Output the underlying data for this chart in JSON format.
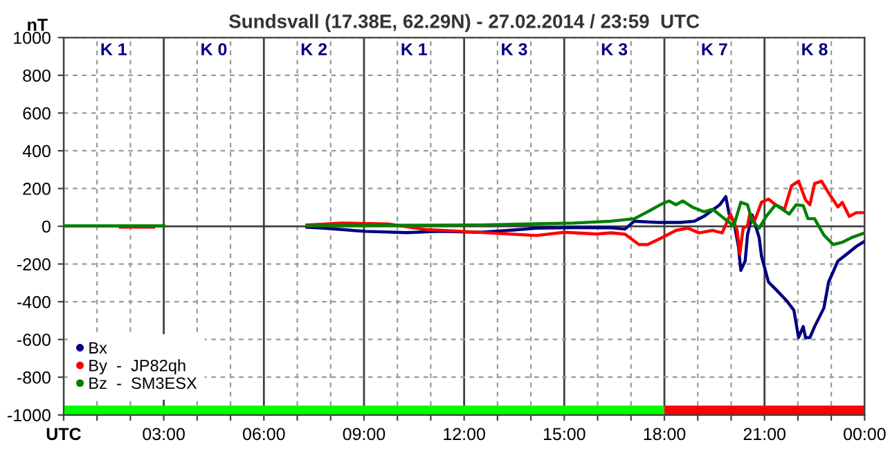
{
  "chart_data": {
    "type": "line",
    "title": "Sundsvall (17.38E, 62.29N) - 27.02.2014 / 23:59  UTC",
    "ylabel": "nT",
    "xlim": [
      0,
      24
    ],
    "ylim": [
      -1000,
      1000
    ],
    "xticks": [
      {
        "value": 0,
        "label": "UTC"
      },
      {
        "value": 1,
        "label": null
      },
      {
        "value": 2,
        "label": null
      },
      {
        "value": 3,
        "label": "03:00"
      },
      {
        "value": 4,
        "label": null
      },
      {
        "value": 5,
        "label": null
      },
      {
        "value": 6,
        "label": "06:00"
      },
      {
        "value": 7,
        "label": null
      },
      {
        "value": 8,
        "label": null
      },
      {
        "value": 9,
        "label": "09:00"
      },
      {
        "value": 10,
        "label": null
      },
      {
        "value": 11,
        "label": null
      },
      {
        "value": 12,
        "label": "12:00"
      },
      {
        "value": 13,
        "label": null
      },
      {
        "value": 14,
        "label": null
      },
      {
        "value": 15,
        "label": "15:00"
      },
      {
        "value": 16,
        "label": null
      },
      {
        "value": 17,
        "label": null
      },
      {
        "value": 18,
        "label": "18:00"
      },
      {
        "value": 19,
        "label": null
      },
      {
        "value": 20,
        "label": null
      },
      {
        "value": 21,
        "label": "21:00"
      },
      {
        "value": 22,
        "label": null
      },
      {
        "value": 23,
        "label": null
      },
      {
        "value": 24,
        "label": "00:00"
      }
    ],
    "yticks": [
      -1000,
      -800,
      -600,
      -400,
      -200,
      0,
      200,
      400,
      600,
      800,
      1000
    ],
    "grid": true,
    "legend": "bottom left",
    "marker": "none",
    "line_style": "solid",
    "series": [
      {
        "name": "Bx",
        "color": "#000080",
        "x": [
          7.29,
          7.78,
          9.03,
          10.28,
          11.25,
          12.5,
          13.33,
          14.17,
          15.28,
          16.41,
          16.82,
          17.1,
          17.79,
          18.48,
          18.9,
          19.18,
          19.66,
          19.84,
          19.94,
          20.08,
          20.22,
          20.29,
          20.42,
          20.49,
          20.63,
          20.84,
          20.91,
          21.12,
          21.33,
          21.67,
          21.88,
          22.02,
          22.16,
          22.23,
          22.36,
          22.5,
          22.78,
          22.92,
          23.2,
          23.47,
          23.75,
          24
        ],
        "values": [
          -5,
          -10,
          -27,
          -34,
          -27,
          -32,
          -22,
          -10,
          -7,
          -8,
          -15,
          27,
          20,
          20,
          27,
          52,
          114,
          157,
          65,
          27,
          -109,
          -234,
          -184,
          -47,
          60,
          -60,
          -159,
          -296,
          -333,
          -396,
          -445,
          -590,
          -532,
          -590,
          -590,
          -532,
          -433,
          -296,
          -184,
          -147,
          -107,
          -80
        ]
      },
      {
        "name": "By  -  JP82qh",
        "color": "#ff0000",
        "x": [
          1.7,
          2.7,
          5,
          7.29,
          8.33,
          9.72,
          10.83,
          11.94,
          12.92,
          14.17,
          15.0,
          15.97,
          16.41,
          16.82,
          17.24,
          17.5,
          17.93,
          18.35,
          18.7,
          19.04,
          19.45,
          19.73,
          19.98,
          20.18,
          20.26,
          20.36,
          20.49,
          20.56,
          20.7,
          20.91,
          21.12,
          21.33,
          21.6,
          21.81,
          22.02,
          22.23,
          22.36,
          22.5,
          22.71,
          22.92,
          23.2,
          23.33,
          23.54,
          23.75,
          24
        ],
        "values": [
          -5,
          -5,
          null,
          7,
          17,
          12,
          -17,
          -27,
          -37,
          -49,
          -32,
          -41,
          -35,
          -42,
          -97,
          -97,
          -60,
          -22,
          -10,
          -35,
          -22,
          -35,
          65,
          -22,
          -147,
          -10,
          2,
          65,
          27,
          127,
          144,
          114,
          90,
          214,
          239,
          139,
          114,
          226,
          239,
          177,
          102,
          127,
          52,
          72,
          72
        ]
      },
      {
        "name": "Bz  -  SM3ESX",
        "color": "#008000",
        "x": [
          0,
          3,
          5,
          7.29,
          9.72,
          12.5,
          13.9,
          15.28,
          16.41,
          17.1,
          17.5,
          17.93,
          18.14,
          18.35,
          18.55,
          18.83,
          19.18,
          19.45,
          19.8,
          20.08,
          20.29,
          20.49,
          20.63,
          20.84,
          21.05,
          21.33,
          21.53,
          21.74,
          21.95,
          22.16,
          22.3,
          22.5,
          22.78,
          23.06,
          23.33,
          23.61,
          24
        ],
        "values": [
          2,
          2,
          null,
          2,
          5,
          7,
          12,
          17,
          27,
          40,
          77,
          119,
          134,
          114,
          134,
          102,
          77,
          90,
          40,
          2,
          127,
          114,
          27,
          -10,
          52,
          114,
          90,
          65,
          114,
          109,
          40,
          40,
          -47,
          -97,
          -85,
          -60,
          -35
        ]
      }
    ],
    "annotations": [
      "K 1",
      "K 0",
      "K 2",
      "K 1",
      "K 3",
      "K 3",
      "K 7",
      "K 8"
    ]
  }
}
